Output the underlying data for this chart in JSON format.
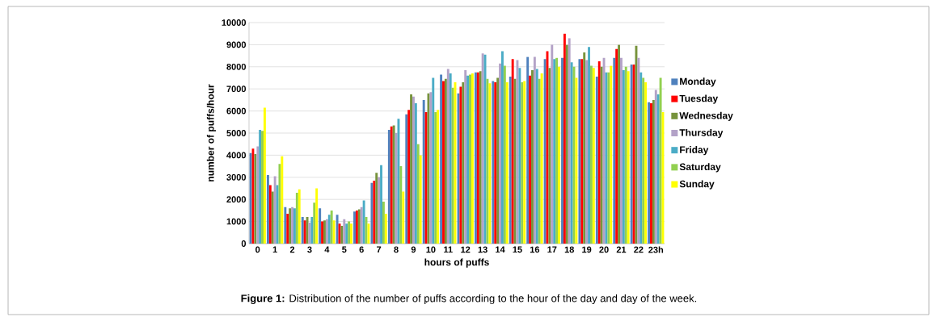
{
  "chart_data": {
    "type": "bar",
    "xlabel": "hours of puffs",
    "ylabel": "number of puffs/hour",
    "annotations": [
      "**Figure 1:** Distribution of the number of puffs according to the hour of the day and day of the week."
    ],
    "categories": [
      "0",
      "1",
      "2",
      "3",
      "4",
      "5",
      "6",
      "7",
      "8",
      "9",
      "10",
      "11",
      "12",
      "13",
      "14",
      "15",
      "16",
      "17",
      "18",
      "19",
      "20",
      "21",
      "22",
      "23h"
    ],
    "ylim": [
      0,
      10000
    ],
    "yticks": [
      0,
      1000,
      2000,
      3000,
      4000,
      5000,
      6000,
      7000,
      8000,
      9000,
      10000
    ],
    "grid": "y",
    "legend": "right",
    "series": [
      {
        "name": "Monday",
        "color": "#4f81bd",
        "values": [
          4100,
          3100,
          1650,
          1200,
          1600,
          1300,
          1450,
          2750,
          5150,
          5850,
          6500,
          7650,
          6800,
          7750,
          7350,
          7550,
          8450,
          8350,
          8400,
          8350,
          7550,
          8400,
          8100,
          6400
        ]
      },
      {
        "name": "Tuesday",
        "color": "#ff0000",
        "values": [
          4300,
          2650,
          1350,
          1050,
          1000,
          900,
          1500,
          2850,
          5300,
          6050,
          5950,
          7350,
          7100,
          7750,
          7300,
          8350,
          7600,
          8700,
          9500,
          8350,
          8250,
          8800,
          8100,
          6350
        ]
      },
      {
        "name": "Wednesday",
        "color": "#77933c",
        "values": [
          4050,
          2350,
          1600,
          1200,
          1050,
          800,
          1550,
          3200,
          5350,
          6750,
          6800,
          7450,
          7300,
          7800,
          7500,
          7450,
          7850,
          7950,
          9000,
          8650,
          8000,
          9000,
          8950,
          6500
        ]
      },
      {
        "name": "Thursday",
        "color": "#b3a2c7",
        "values": [
          4400,
          3050,
          1650,
          950,
          1100,
          1100,
          1650,
          3000,
          5000,
          6650,
          6850,
          7900,
          7850,
          8600,
          8150,
          8300,
          8450,
          9000,
          9300,
          8300,
          8400,
          8400,
          8400,
          6950
        ]
      },
      {
        "name": "Friday",
        "color": "#4bacc6",
        "values": [
          5150,
          2650,
          1600,
          1200,
          1300,
          900,
          1950,
          3550,
          5650,
          6350,
          7500,
          7700,
          7600,
          8550,
          8700,
          7950,
          7900,
          8350,
          8200,
          8900,
          7750,
          7850,
          7750,
          6750
        ]
      },
      {
        "name": "Saturday",
        "color": "#92d050",
        "values": [
          5100,
          3600,
          2300,
          1850,
          1500,
          1000,
          1200,
          1900,
          3500,
          4500,
          5950,
          7050,
          7650,
          7450,
          8050,
          7300,
          7450,
          8400,
          8000,
          8050,
          7750,
          8000,
          7500,
          7500
        ]
      },
      {
        "name": "Sunday",
        "color": "#ffff00",
        "values": [
          6150,
          3950,
          2450,
          2500,
          1050,
          900,
          900,
          1350,
          2350,
          4000,
          6050,
          7300,
          7700,
          7250,
          7300,
          7350,
          7700,
          8000,
          7500,
          7950,
          8050,
          7800,
          7300,
          5950
        ]
      }
    ]
  }
}
